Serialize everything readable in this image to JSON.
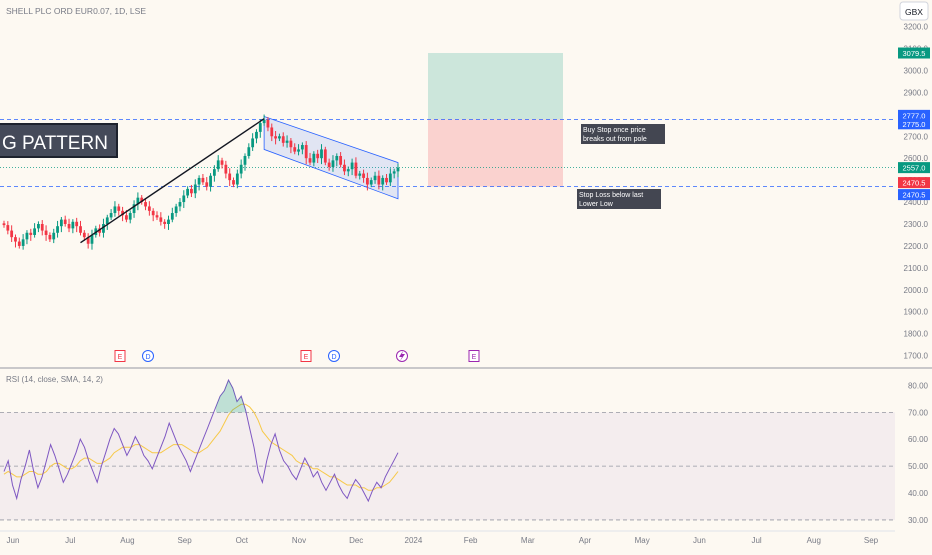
{
  "header": {
    "symbol_line": "SHELL PLC ORD EUR0.07, 1D, LSE",
    "currency": "GBX"
  },
  "pattern_label": "G PATTERN",
  "rsi_label": "RSI (14, close, SMA, 14, 2)",
  "chart_data": {
    "type": "candlestick",
    "x_ticks": [
      "Jun",
      "Jul",
      "Aug",
      "Sep",
      "Oct",
      "Nov",
      "Dec",
      "2024",
      "Feb",
      "Mar",
      "Apr",
      "May",
      "Jun",
      "Jul",
      "Aug",
      "Sep"
    ],
    "price_axis": {
      "ticks": [
        "3200.0",
        "3100.0",
        "3000.0",
        "2900.0",
        "2800.0",
        "2700.0",
        "2600.0",
        "2500.0",
        "2400.0",
        "2300.0",
        "2200.0",
        "2100.0",
        "2000.0",
        "1900.0",
        "1800.0",
        "1700.0"
      ],
      "range": [
        1680,
        3230
      ]
    },
    "price_tags": [
      {
        "label": "3079.5",
        "value": 3079.5,
        "color": "#089981"
      },
      {
        "label": "2777.0",
        "value": 2777.0,
        "color": "#2962ff"
      },
      {
        "label": "2775.0",
        "value": 2775.0,
        "color": "#2962ff"
      },
      {
        "label": "2557.0",
        "value": 2557.0,
        "color": "#089981"
      },
      {
        "label": "2470.5",
        "value": 2470.5,
        "color": "#f23645"
      },
      {
        "label": "2470.5",
        "value": 2470.5,
        "color": "#2962ff"
      }
    ],
    "close_series": [
      2295,
      2270,
      2240,
      2220,
      2200,
      2230,
      2260,
      2250,
      2280,
      2300,
      2270,
      2250,
      2230,
      2260,
      2290,
      2320,
      2300,
      2280,
      2310,
      2290,
      2260,
      2240,
      2210,
      2250,
      2280,
      2260,
      2300,
      2330,
      2350,
      2380,
      2360,
      2340,
      2320,
      2350,
      2390,
      2420,
      2400,
      2380,
      2360,
      2340,
      2330,
      2310,
      2300,
      2320,
      2350,
      2380,
      2400,
      2430,
      2460,
      2440,
      2480,
      2510,
      2490,
      2470,
      2520,
      2550,
      2590,
      2570,
      2530,
      2500,
      2480,
      2530,
      2570,
      2610,
      2650,
      2690,
      2720,
      2760,
      2775,
      2740,
      2700,
      2690,
      2700,
      2670,
      2680,
      2650,
      2630,
      2640,
      2660,
      2600,
      2580,
      2620,
      2600,
      2640,
      2580,
      2560,
      2590,
      2610,
      2570,
      2540,
      2550,
      2580,
      2520,
      2530,
      2510,
      2480,
      2500,
      2520,
      2480,
      2510,
      2490,
      2530,
      2540,
      2557
    ],
    "annotations": [
      {
        "text": "Buy Stop once price breaks out from pole"
      },
      {
        "text": "Stop Loss below last Lower Low"
      }
    ],
    "event_markers": [
      "E",
      "D",
      "E",
      "D",
      "E"
    ],
    "levels": {
      "entry": 2777.0,
      "stop": 2470.5,
      "target": 3079.5
    },
    "rsi": {
      "ticks": [
        "80.00",
        "70.00",
        "60.00",
        "50.00",
        "40.00",
        "30.00"
      ],
      "range": [
        27,
        85
      ],
      "levels": [
        70,
        50,
        30
      ],
      "series": [
        48,
        52,
        43,
        38,
        45,
        50,
        56,
        48,
        42,
        46,
        52,
        58,
        54,
        49,
        44,
        47,
        51,
        55,
        60,
        57,
        52,
        48,
        44,
        50,
        55,
        60,
        64,
        62,
        58,
        54,
        57,
        61,
        58,
        54,
        52,
        49,
        53,
        57,
        61,
        66,
        62,
        58,
        55,
        52,
        48,
        52,
        56,
        60,
        64,
        68,
        72,
        76,
        78,
        82,
        79,
        74,
        76,
        71,
        64,
        57,
        48,
        44,
        52,
        58,
        62,
        56,
        52,
        50,
        47,
        45,
        49,
        53,
        50,
        46,
        48,
        44,
        41,
        44,
        47,
        43,
        40,
        38,
        42,
        45,
        43,
        40,
        37,
        41,
        44,
        42,
        46,
        49,
        52,
        55
      ],
      "ma": [
        47,
        48,
        47,
        46,
        46,
        47,
        48,
        48,
        47,
        47,
        48,
        50,
        51,
        51,
        50,
        49,
        49,
        50,
        52,
        53,
        53,
        52,
        51,
        51,
        52,
        53,
        55,
        56,
        57,
        57,
        57,
        58,
        58,
        57,
        56,
        55,
        55,
        55,
        56,
        57,
        58,
        58,
        58,
        57,
        56,
        55,
        55,
        56,
        57,
        59,
        61,
        63,
        66,
        69,
        71,
        72,
        73,
        73,
        72,
        70,
        67,
        63,
        61,
        59,
        58,
        57,
        56,
        55,
        54,
        52,
        51,
        51,
        50,
        49,
        49,
        48,
        47,
        46,
        46,
        45,
        44,
        43,
        43,
        43,
        42,
        42,
        41,
        41,
        42,
        42,
        43,
        44,
        46,
        48
      ]
    }
  }
}
